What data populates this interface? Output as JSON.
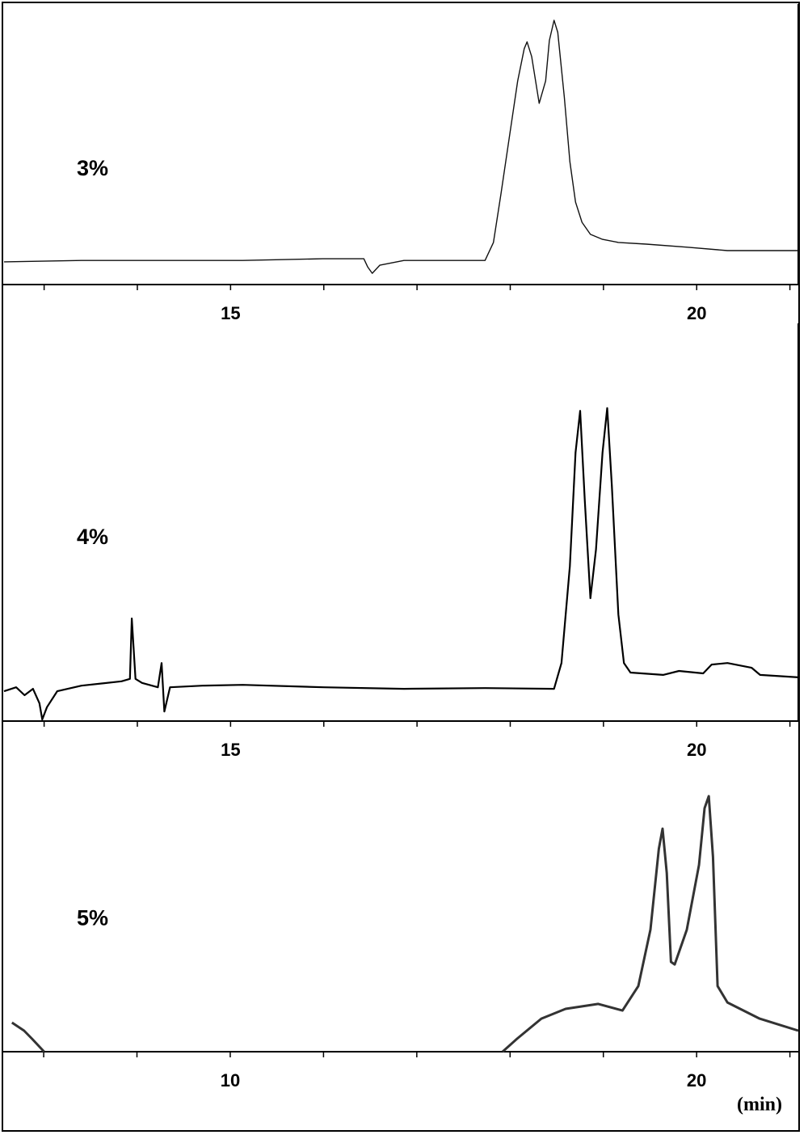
{
  "chart_data": [
    {
      "type": "line",
      "label": "3%",
      "color": "#111111",
      "x": [
        12.57,
        13.4,
        14.26,
        15.13,
        15.99,
        16.43,
        16.47,
        16.52,
        16.6,
        16.86,
        17.73,
        17.82,
        17.9,
        17.99,
        18.08,
        18.15,
        18.18,
        18.23,
        18.31,
        18.38,
        18.42,
        18.47,
        18.51,
        18.58,
        18.64,
        18.7,
        18.77,
        18.86,
        18.99,
        19.16,
        19.46,
        19.9,
        20.33,
        21.09
      ],
      "values": [
        8.1,
        8.6,
        8.6,
        8.6,
        9.2,
        9.2,
        6.3,
        4.0,
        6.9,
        8.6,
        8.6,
        15.0,
        32.3,
        52.4,
        72.6,
        84.1,
        86.5,
        81.3,
        64.6,
        72.6,
        87.0,
        94.2,
        89.9,
        66.9,
        43.8,
        29.4,
        22.2,
        17.9,
        16.1,
        15.0,
        14.4,
        13.3,
        12.1,
        12.1
      ],
      "xlim": [
        12.57,
        21.09
      ],
      "ylim": [
        0,
        100
      ],
      "xticks": [
        15,
        20
      ],
      "xminor_ticks": [
        13,
        14,
        16,
        17,
        18,
        19,
        21
      ]
    },
    {
      "type": "line",
      "label": "4%",
      "color": "#000000",
      "x": [
        12.57,
        12.7,
        12.79,
        12.88,
        12.95,
        12.98,
        13.03,
        13.14,
        13.4,
        13.83,
        13.92,
        13.94,
        13.98,
        14.05,
        14.22,
        14.26,
        14.29,
        14.35,
        14.7,
        15.13,
        16.0,
        16.86,
        17.73,
        18.47,
        18.55,
        18.64,
        18.7,
        18.75,
        18.8,
        18.86,
        18.92,
        18.99,
        19.04,
        19.09,
        19.16,
        19.22,
        19.29,
        19.64,
        19.81,
        20.07,
        20.16,
        20.33,
        20.59,
        20.68,
        21.09
      ],
      "values": [
        7.5,
        8.5,
        6.5,
        8.1,
        4.5,
        0.4,
        3.5,
        7.5,
        8.9,
        10.0,
        10.6,
        25.8,
        10.6,
        9.6,
        8.5,
        14.6,
        2.4,
        8.5,
        8.9,
        9.1,
        8.5,
        8.1,
        8.3,
        8.1,
        14.6,
        39.0,
        67.5,
        78.0,
        55.3,
        30.9,
        43.1,
        67.5,
        78.7,
        59.3,
        26.8,
        14.6,
        12.2,
        11.6,
        12.6,
        12.0,
        14.2,
        14.6,
        13.4,
        11.6,
        11.0
      ],
      "xlim": [
        12.57,
        21.09
      ],
      "ylim": [
        0,
        100
      ],
      "xticks": [
        15,
        20
      ],
      "xminor_ticks": [
        13,
        14,
        16,
        17,
        18,
        19,
        21
      ]
    },
    {
      "type": "line",
      "label": "5%",
      "color": "#333333",
      "xlabel": "(min)",
      "x": [
        5.32,
        5.58,
        5.75,
        6.01,
        null,
        15.84,
        16.15,
        16.67,
        17.19,
        17.89,
        18.41,
        18.75,
        19.01,
        19.19,
        19.27,
        19.36,
        19.45,
        19.53,
        19.79,
        20.05,
        20.17,
        20.26,
        20.35,
        20.45,
        20.66,
        21.35,
        22.18
      ],
      "values": [
        10.1,
        7.3,
        4.5,
        0,
        null,
        0,
        4.5,
        11.5,
        14.9,
        16.6,
        14.3,
        22.8,
        42.4,
        70.5,
        77.5,
        62.1,
        31.2,
        30.3,
        42.4,
        64.9,
        84.6,
        88.8,
        67.7,
        22.8,
        17.1,
        11.5,
        7.3
      ],
      "xlim": [
        5.15,
        22.18
      ],
      "ylim": [
        0,
        100
      ],
      "xticks": [
        10,
        20
      ],
      "xminor_ticks": [
        6,
        8,
        12,
        14,
        16,
        18,
        22
      ]
    }
  ]
}
